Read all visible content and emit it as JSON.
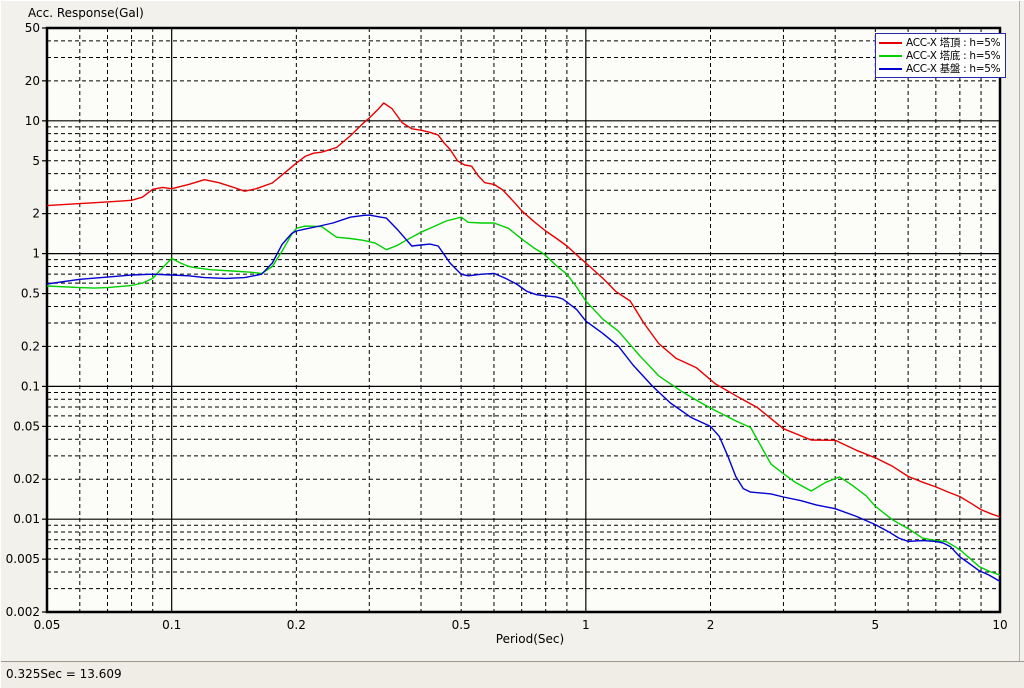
{
  "window": {
    "status_bar": {
      "text": "0.325Sec = 13.609"
    }
  },
  "chart_data": {
    "type": "line",
    "title": "Acc. Response(Gal)",
    "xlabel": "Period(Sec)",
    "ylabel": "Acc. Response(Gal)",
    "x_scale": "log",
    "y_scale": "log",
    "xlim": [
      0.05,
      10
    ],
    "ylim": [
      0.002,
      50
    ],
    "grid": true,
    "x_tick_values": [
      0.05,
      0.1,
      0.2,
      0.5,
      1,
      2,
      5,
      10
    ],
    "x_tick_labels": [
      "0.05",
      "0.1",
      "0.2",
      "0.5",
      "1",
      "2",
      "5",
      "10"
    ],
    "y_tick_values": [
      50,
      20,
      10,
      5,
      2,
      1,
      0.5,
      0.2,
      0.1,
      0.05,
      0.02,
      0.01,
      0.005,
      0.002
    ],
    "y_tick_labels": [
      "50",
      "20",
      "10",
      "5",
      "2",
      "1",
      "0.5",
      "0.2",
      "0.1",
      "0.05",
      "0.02",
      "0.01",
      "0.005",
      "0.002"
    ],
    "x_solid_gridlines": [
      0.1,
      1
    ],
    "y_solid_gridlines": [
      10,
      1,
      0.1,
      0.01
    ],
    "x_minor_gridlines": [
      0.06,
      0.07,
      0.08,
      0.09,
      0.2,
      0.3,
      0.4,
      0.5,
      0.6,
      0.7,
      0.8,
      0.9,
      2,
      3,
      4,
      5,
      6,
      7,
      8,
      9
    ],
    "y_minor_gridlines": [
      20,
      30,
      40,
      2,
      3,
      4,
      5,
      6,
      7,
      8,
      9,
      0.2,
      0.3,
      0.4,
      0.5,
      0.6,
      0.7,
      0.8,
      0.9,
      0.02,
      0.03,
      0.04,
      0.05,
      0.06,
      0.07,
      0.08,
      0.09,
      0.003,
      0.004,
      0.005,
      0.006,
      0.007,
      0.008,
      0.009
    ],
    "legend_position": "top-right",
    "legend_border_color": "#2929ad",
    "series": [
      {
        "name": "ACC-X 塔頂 : h=5%",
        "color": "#e80000",
        "points": [
          [
            0.05,
            2.3
          ],
          [
            0.06,
            2.38
          ],
          [
            0.07,
            2.45
          ],
          [
            0.08,
            2.52
          ],
          [
            0.085,
            2.66
          ],
          [
            0.09,
            3.05
          ],
          [
            0.095,
            3.15
          ],
          [
            0.1,
            3.08
          ],
          [
            0.11,
            3.32
          ],
          [
            0.12,
            3.6
          ],
          [
            0.13,
            3.42
          ],
          [
            0.14,
            3.18
          ],
          [
            0.15,
            2.95
          ],
          [
            0.16,
            3.08
          ],
          [
            0.175,
            3.4
          ],
          [
            0.19,
            4.2
          ],
          [
            0.2,
            4.8
          ],
          [
            0.21,
            5.4
          ],
          [
            0.22,
            5.7
          ],
          [
            0.23,
            5.8
          ],
          [
            0.25,
            6.3
          ],
          [
            0.27,
            7.7
          ],
          [
            0.29,
            9.6
          ],
          [
            0.3,
            10.5
          ],
          [
            0.315,
            12.2
          ],
          [
            0.325,
            13.61
          ],
          [
            0.34,
            12.4
          ],
          [
            0.36,
            9.7
          ],
          [
            0.38,
            8.7
          ],
          [
            0.4,
            8.5
          ],
          [
            0.42,
            8.2
          ],
          [
            0.44,
            7.8
          ],
          [
            0.455,
            6.8
          ],
          [
            0.47,
            6.1
          ],
          [
            0.49,
            5.0
          ],
          [
            0.51,
            4.65
          ],
          [
            0.53,
            4.55
          ],
          [
            0.55,
            3.85
          ],
          [
            0.57,
            3.42
          ],
          [
            0.6,
            3.32
          ],
          [
            0.63,
            3.02
          ],
          [
            0.655,
            2.65
          ],
          [
            0.68,
            2.33
          ],
          [
            0.7,
            2.1
          ],
          [
            0.75,
            1.74
          ],
          [
            0.8,
            1.48
          ],
          [
            0.85,
            1.3
          ],
          [
            0.9,
            1.14
          ],
          [
            0.95,
            0.98
          ],
          [
            1.0,
            0.85
          ],
          [
            1.1,
            0.65
          ],
          [
            1.18,
            0.52
          ],
          [
            1.28,
            0.44
          ],
          [
            1.38,
            0.3
          ],
          [
            1.5,
            0.21
          ],
          [
            1.65,
            0.163
          ],
          [
            1.85,
            0.138
          ],
          [
            2.05,
            0.105
          ],
          [
            2.35,
            0.082
          ],
          [
            2.6,
            0.069
          ],
          [
            3.0,
            0.048
          ],
          [
            3.5,
            0.0395
          ],
          [
            4.0,
            0.0393
          ],
          [
            4.5,
            0.033
          ],
          [
            5.0,
            0.029
          ],
          [
            5.5,
            0.025
          ],
          [
            6.0,
            0.021
          ],
          [
            6.5,
            0.019
          ],
          [
            7.0,
            0.0175
          ],
          [
            7.5,
            0.016
          ],
          [
            8.0,
            0.0148
          ],
          [
            8.5,
            0.0132
          ],
          [
            9.0,
            0.0118
          ],
          [
            9.5,
            0.011
          ],
          [
            10,
            0.0104
          ]
        ]
      },
      {
        "name": "ACC-X 塔底 : h=5%",
        "color": "#00cf00",
        "points": [
          [
            0.05,
            0.57
          ],
          [
            0.06,
            0.555
          ],
          [
            0.065,
            0.55
          ],
          [
            0.07,
            0.555
          ],
          [
            0.08,
            0.575
          ],
          [
            0.085,
            0.6
          ],
          [
            0.09,
            0.65
          ],
          [
            0.095,
            0.78
          ],
          [
            0.1,
            0.92
          ],
          [
            0.105,
            0.85
          ],
          [
            0.11,
            0.8
          ],
          [
            0.115,
            0.78
          ],
          [
            0.125,
            0.755
          ],
          [
            0.14,
            0.74
          ],
          [
            0.155,
            0.725
          ],
          [
            0.165,
            0.71
          ],
          [
            0.175,
            0.8
          ],
          [
            0.185,
            1.05
          ],
          [
            0.195,
            1.4
          ],
          [
            0.2,
            1.55
          ],
          [
            0.21,
            1.61
          ],
          [
            0.23,
            1.6
          ],
          [
            0.25,
            1.33
          ],
          [
            0.27,
            1.3
          ],
          [
            0.29,
            1.26
          ],
          [
            0.31,
            1.2
          ],
          [
            0.33,
            1.07
          ],
          [
            0.35,
            1.15
          ],
          [
            0.365,
            1.24
          ],
          [
            0.4,
            1.45
          ],
          [
            0.43,
            1.6
          ],
          [
            0.46,
            1.76
          ],
          [
            0.5,
            1.88
          ],
          [
            0.52,
            1.72
          ],
          [
            0.56,
            1.7
          ],
          [
            0.6,
            1.7
          ],
          [
            0.65,
            1.55
          ],
          [
            0.7,
            1.29
          ],
          [
            0.75,
            1.1
          ],
          [
            0.79,
            1.0
          ],
          [
            0.85,
            0.81
          ],
          [
            0.9,
            0.7
          ],
          [
            0.95,
            0.56
          ],
          [
            1.0,
            0.44
          ],
          [
            1.1,
            0.32
          ],
          [
            1.2,
            0.26
          ],
          [
            1.35,
            0.17
          ],
          [
            1.5,
            0.12
          ],
          [
            1.7,
            0.092
          ],
          [
            1.9,
            0.075
          ],
          [
            2.05,
            0.066
          ],
          [
            2.3,
            0.055
          ],
          [
            2.5,
            0.049
          ],
          [
            2.8,
            0.026
          ],
          [
            3.0,
            0.022
          ],
          [
            3.2,
            0.019
          ],
          [
            3.5,
            0.0163
          ],
          [
            3.8,
            0.019
          ],
          [
            4.1,
            0.0208
          ],
          [
            4.4,
            0.018
          ],
          [
            4.75,
            0.015
          ],
          [
            5.0,
            0.0125
          ],
          [
            5.5,
            0.0099
          ],
          [
            6.0,
            0.0085
          ],
          [
            6.5,
            0.0072
          ],
          [
            7.0,
            0.0069
          ],
          [
            7.4,
            0.0068
          ],
          [
            7.8,
            0.0062
          ],
          [
            8.1,
            0.0057
          ],
          [
            8.5,
            0.005
          ],
          [
            8.9,
            0.0044
          ],
          [
            9.5,
            0.004
          ],
          [
            10,
            0.0038
          ]
        ]
      },
      {
        "name": "ACC-X 基盤 : h=5%",
        "color": "#0000d0",
        "points": [
          [
            0.05,
            0.59
          ],
          [
            0.06,
            0.64
          ],
          [
            0.07,
            0.665
          ],
          [
            0.08,
            0.69
          ],
          [
            0.09,
            0.7
          ],
          [
            0.1,
            0.69
          ],
          [
            0.11,
            0.68
          ],
          [
            0.12,
            0.66
          ],
          [
            0.135,
            0.65
          ],
          [
            0.15,
            0.66
          ],
          [
            0.165,
            0.7
          ],
          [
            0.175,
            0.85
          ],
          [
            0.185,
            1.18
          ],
          [
            0.195,
            1.42
          ],
          [
            0.2,
            1.48
          ],
          [
            0.21,
            1.53
          ],
          [
            0.225,
            1.6
          ],
          [
            0.245,
            1.7
          ],
          [
            0.27,
            1.88
          ],
          [
            0.29,
            1.94
          ],
          [
            0.3,
            1.95
          ],
          [
            0.32,
            1.88
          ],
          [
            0.33,
            1.85
          ],
          [
            0.35,
            1.53
          ],
          [
            0.38,
            1.14
          ],
          [
            0.4,
            1.16
          ],
          [
            0.42,
            1.18
          ],
          [
            0.44,
            1.14
          ],
          [
            0.47,
            0.85
          ],
          [
            0.5,
            0.7
          ],
          [
            0.52,
            0.68
          ],
          [
            0.56,
            0.7
          ],
          [
            0.6,
            0.71
          ],
          [
            0.64,
            0.65
          ],
          [
            0.68,
            0.59
          ],
          [
            0.72,
            0.52
          ],
          [
            0.76,
            0.49
          ],
          [
            0.8,
            0.48
          ],
          [
            0.85,
            0.47
          ],
          [
            0.88,
            0.455
          ],
          [
            0.95,
            0.38
          ],
          [
            1.0,
            0.31
          ],
          [
            1.1,
            0.25
          ],
          [
            1.2,
            0.2
          ],
          [
            1.3,
            0.145
          ],
          [
            1.45,
            0.1
          ],
          [
            1.6,
            0.075
          ],
          [
            1.8,
            0.058
          ],
          [
            2.0,
            0.05
          ],
          [
            2.1,
            0.042
          ],
          [
            2.2,
            0.03
          ],
          [
            2.3,
            0.021
          ],
          [
            2.4,
            0.017
          ],
          [
            2.5,
            0.016
          ],
          [
            2.8,
            0.0155
          ],
          [
            3.0,
            0.0147
          ],
          [
            3.3,
            0.0138
          ],
          [
            3.6,
            0.0128
          ],
          [
            4.0,
            0.012
          ],
          [
            4.5,
            0.0105
          ],
          [
            5.0,
            0.0091
          ],
          [
            5.4,
            0.008
          ],
          [
            5.7,
            0.0072
          ],
          [
            6.0,
            0.0068
          ],
          [
            6.5,
            0.0069
          ],
          [
            7.0,
            0.0068
          ],
          [
            7.3,
            0.0066
          ],
          [
            7.6,
            0.0062
          ],
          [
            8.0,
            0.0052
          ],
          [
            8.3,
            0.0048
          ],
          [
            8.9,
            0.0041
          ],
          [
            9.4,
            0.0038
          ],
          [
            10,
            0.0034
          ]
        ]
      }
    ]
  }
}
